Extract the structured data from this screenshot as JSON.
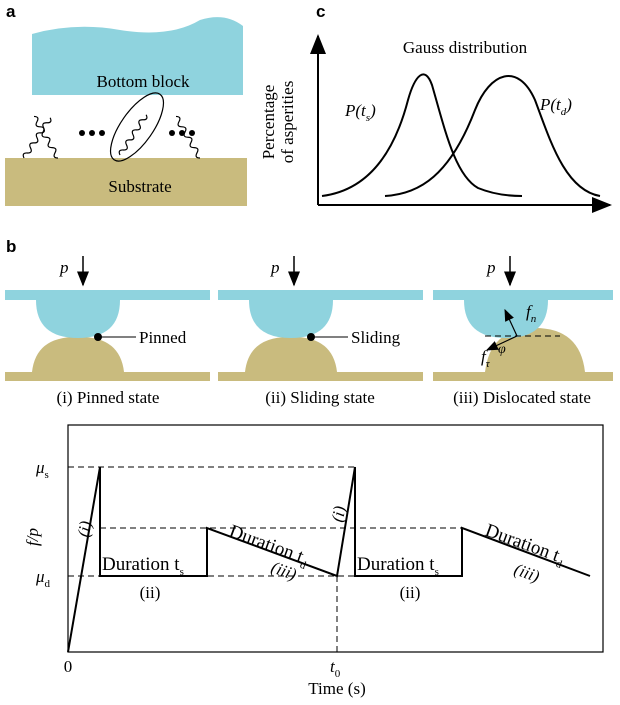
{
  "panel_a": {
    "label": "a",
    "top_block": "Bottom block",
    "substrate": "Substrate"
  },
  "panel_c": {
    "label": "c",
    "title": "Gauss distribution",
    "y_axis": [
      "Percentage",
      "of asperities"
    ],
    "curve_s": {
      "text": "P(t",
      "sub": "s",
      "end": ")"
    },
    "curve_d": {
      "text": "P(t",
      "sub": "d",
      "end": ")"
    }
  },
  "panel_b": {
    "label": "b",
    "states": [
      {
        "force": "p",
        "point": "Pinned",
        "caption": "(i) Pinned state"
      },
      {
        "force": "p",
        "point": "Sliding",
        "caption": "(ii) Sliding state"
      },
      {
        "force": "p",
        "caption": "(iii) Dislocated state",
        "normal": {
          "text": "f",
          "sub": "n"
        },
        "tangent": {
          "text": "f",
          "sub": "τ"
        },
        "angle": "φ"
      }
    ]
  },
  "plot": {
    "y_label": "f/p",
    "mu_s": {
      "text": "μ",
      "sub": "s"
    },
    "mu_d": {
      "text": "μ",
      "sub": "d"
    },
    "origin": "0",
    "t0": {
      "text": "t",
      "sub": "0"
    },
    "x_label": "Time (s)",
    "phase_labels": [
      "(i)",
      "(ii)",
      "(iii)",
      "(i)",
      "(ii)",
      "(iii)"
    ],
    "durations": [
      {
        "text": "Duration t",
        "sub": "s"
      },
      {
        "text": "Duration t",
        "sub": "d"
      },
      {
        "text": "Duration t",
        "sub": "s"
      },
      {
        "text": "Duration t",
        "sub": "d"
      }
    ]
  }
}
